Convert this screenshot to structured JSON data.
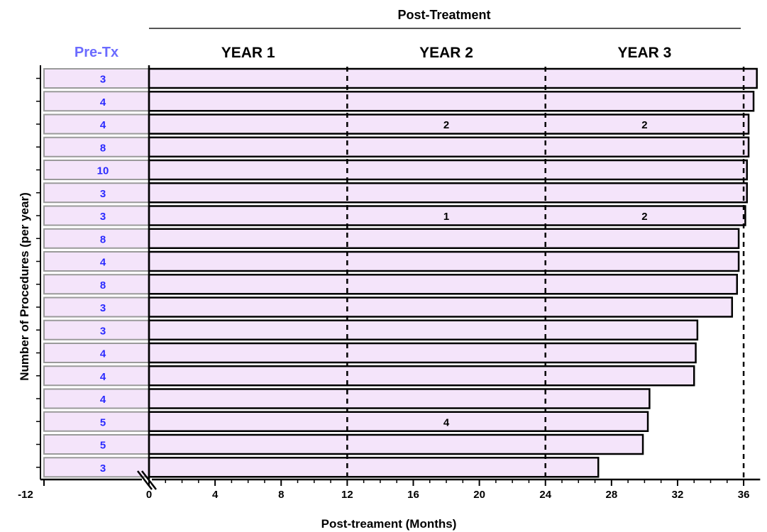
{
  "chart_data": {
    "type": "bar",
    "orientation": "horizontal",
    "header": "Post-Treatment",
    "pre_label": "Pre-Tx",
    "year_labels": [
      "YEAR 1",
      "YEAR 2",
      "YEAR 3"
    ],
    "xlabel": "Post-treament (Months)",
    "ylabel": "Number of Procedures (per year)",
    "xlim": [
      -12,
      37
    ],
    "xticks": [
      "-12",
      "0",
      "4",
      "8",
      "12",
      "16",
      "20",
      "24",
      "28",
      "32",
      "36"
    ],
    "reference_lines_x": [
      12,
      24,
      36
    ],
    "axis_break_at_x": 0,
    "pre_treatment_window": [
      -12,
      0
    ],
    "colors": {
      "bar_fill": "#f4e4fa",
      "pre_text": "#2a2aff",
      "pre_header": "#6b6bff",
      "edge": "#000000",
      "pre_edge": "#9a9a9a"
    },
    "patients": [
      {
        "pre": "3",
        "end_month": 36.8,
        "year2": "",
        "year3": ""
      },
      {
        "pre": "4",
        "end_month": 36.6,
        "year2": "",
        "year3": ""
      },
      {
        "pre": "4",
        "end_month": 36.3,
        "year2": "2",
        "year3": "2"
      },
      {
        "pre": "8",
        "end_month": 36.3,
        "year2": "",
        "year3": ""
      },
      {
        "pre": "10",
        "end_month": 36.2,
        "year2": "",
        "year3": ""
      },
      {
        "pre": "3",
        "end_month": 36.2,
        "year2": "",
        "year3": ""
      },
      {
        "pre": "3",
        "end_month": 36.1,
        "year2": "1",
        "year3": "2"
      },
      {
        "pre": "8",
        "end_month": 35.7,
        "year2": "",
        "year3": ""
      },
      {
        "pre": "4",
        "end_month": 35.7,
        "year2": "",
        "year3": ""
      },
      {
        "pre": "8",
        "end_month": 35.6,
        "year2": "",
        "year3": ""
      },
      {
        "pre": "3",
        "end_month": 35.3,
        "year2": "",
        "year3": ""
      },
      {
        "pre": "3",
        "end_month": 33.2,
        "year2": "",
        "year3": ""
      },
      {
        "pre": "4",
        "end_month": 33.1,
        "year2": "",
        "year3": ""
      },
      {
        "pre": "4",
        "end_month": 33.0,
        "year2": "",
        "year3": ""
      },
      {
        "pre": "4",
        "end_month": 30.3,
        "year2": "",
        "year3": ""
      },
      {
        "pre": "5",
        "end_month": 30.2,
        "year2": "4",
        "year3": ""
      },
      {
        "pre": "5",
        "end_month": 29.9,
        "year2": "",
        "year3": ""
      },
      {
        "pre": "3",
        "end_month": 27.2,
        "year2": "",
        "year3": ""
      }
    ]
  }
}
